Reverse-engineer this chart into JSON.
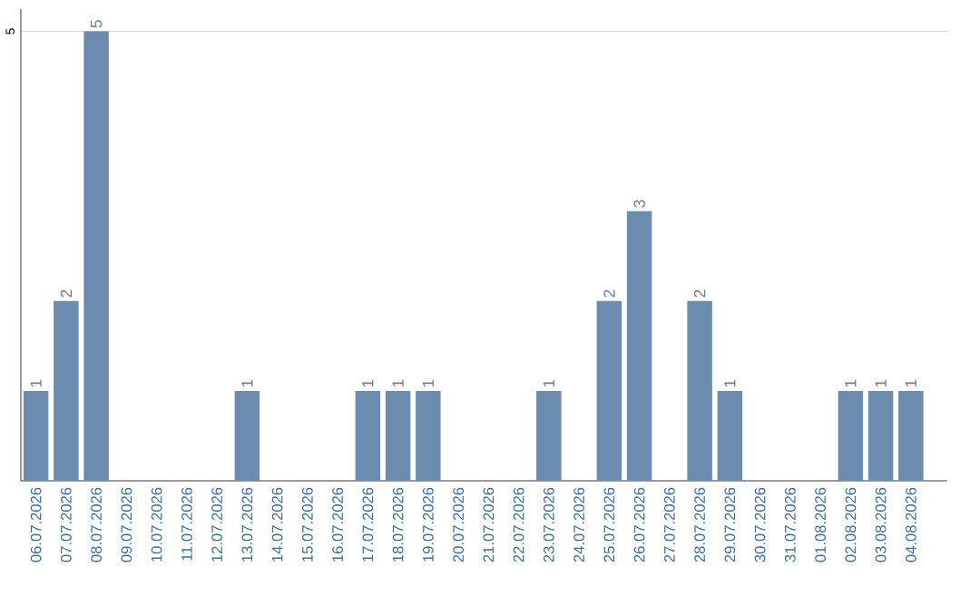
{
  "chart_data": {
    "type": "bar",
    "categories": [
      "06.07.2026",
      "07.07.2026",
      "08.07.2026",
      "09.07.2026",
      "10.07.2026",
      "11.07.2026",
      "12.07.2026",
      "13.07.2026",
      "14.07.2026",
      "15.07.2026",
      "16.07.2026",
      "17.07.2026",
      "18.07.2026",
      "19.07.2026",
      "20.07.2026",
      "21.07.2026",
      "22.07.2026",
      "23.07.2026",
      "24.07.2026",
      "25.07.2026",
      "26.07.2026",
      "27.07.2026",
      "28.07.2026",
      "29.07.2026",
      "30.07.2026",
      "31.07.2026",
      "01.08.2026",
      "02.08.2026",
      "03.08.2026",
      "04.08.2026"
    ],
    "values": [
      1,
      2,
      5,
      0,
      0,
      0,
      0,
      1,
      0,
      0,
      0,
      1,
      1,
      1,
      0,
      0,
      0,
      1,
      0,
      2,
      3,
      0,
      2,
      1,
      0,
      0,
      0,
      1,
      1,
      1
    ],
    "value_labels": [
      "1",
      "2",
      "5",
      null,
      null,
      null,
      null,
      "1",
      null,
      null,
      null,
      "1",
      "1",
      "1",
      null,
      null,
      null,
      "1",
      null,
      "2",
      "3",
      null,
      "2",
      "1",
      null,
      null,
      null,
      "1",
      "1",
      "1"
    ],
    "color": "#6b8cae",
    "ylim": [
      0,
      5.25
    ],
    "yticks": [
      5
    ],
    "grid": "y"
  }
}
